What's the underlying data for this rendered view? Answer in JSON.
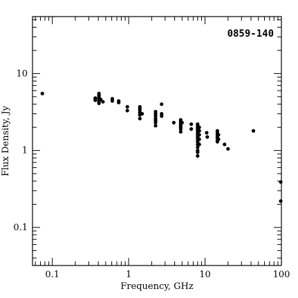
{
  "chart_data": {
    "type": "scatter",
    "title": "0859-140",
    "xlabel": "Frequency, GHz",
    "ylabel": "Flux Density, Jy",
    "xscale": "log",
    "yscale": "log",
    "xlim": [
      0.055,
      100
    ],
    "ylim": [
      0.032,
      55
    ],
    "grid": false,
    "xticks": [
      {
        "value": 0.1,
        "label": "0.1"
      },
      {
        "value": 1,
        "label": "1"
      },
      {
        "value": 10,
        "label": "10"
      },
      {
        "value": 100,
        "label": "100"
      }
    ],
    "yticks": [
      {
        "value": 0.1,
        "label": "0.1"
      },
      {
        "value": 1,
        "label": "1"
      },
      {
        "value": 10,
        "label": "10"
      }
    ],
    "points": [
      [
        0.074,
        5.5
      ],
      [
        0.365,
        4.8
      ],
      [
        0.365,
        4.5
      ],
      [
        0.365,
        4.7
      ],
      [
        0.408,
        5.5
      ],
      [
        0.408,
        5.2
      ],
      [
        0.408,
        5.0
      ],
      [
        0.408,
        4.8
      ],
      [
        0.408,
        4.5
      ],
      [
        0.408,
        4.3
      ],
      [
        0.408,
        4.1
      ],
      [
        0.43,
        4.6
      ],
      [
        0.46,
        4.3
      ],
      [
        0.61,
        4.7
      ],
      [
        0.61,
        4.4
      ],
      [
        0.74,
        4.4
      ],
      [
        0.74,
        4.2
      ],
      [
        0.96,
        3.7
      ],
      [
        0.96,
        3.3
      ],
      [
        1.4,
        3.7
      ],
      [
        1.4,
        3.5
      ],
      [
        1.4,
        3.3
      ],
      [
        1.4,
        3.1
      ],
      [
        1.4,
        2.9
      ],
      [
        1.4,
        2.6
      ],
      [
        1.5,
        3.0
      ],
      [
        2.25,
        3.2
      ],
      [
        2.25,
        3.0
      ],
      [
        2.25,
        2.8
      ],
      [
        2.25,
        2.6
      ],
      [
        2.25,
        2.45
      ],
      [
        2.25,
        2.3
      ],
      [
        2.25,
        2.1
      ],
      [
        2.7,
        4.0
      ],
      [
        2.7,
        3.0
      ],
      [
        2.7,
        2.8
      ],
      [
        3.9,
        2.3
      ],
      [
        4.8,
        2.5
      ],
      [
        4.8,
        2.4
      ],
      [
        4.8,
        2.3
      ],
      [
        4.8,
        2.2
      ],
      [
        4.8,
        2.1
      ],
      [
        4.8,
        2.0
      ],
      [
        4.8,
        1.9
      ],
      [
        4.8,
        1.75
      ],
      [
        5.0,
        2.3
      ],
      [
        6.6,
        2.2
      ],
      [
        6.6,
        1.9
      ],
      [
        8.0,
        2.2
      ],
      [
        8.0,
        2.1
      ],
      [
        8.0,
        2.0
      ],
      [
        8.0,
        1.9
      ],
      [
        8.0,
        1.8
      ],
      [
        8.0,
        1.7
      ],
      [
        8.0,
        1.6
      ],
      [
        8.0,
        1.5
      ],
      [
        8.0,
        1.4
      ],
      [
        8.0,
        1.3
      ],
      [
        8.0,
        1.2
      ],
      [
        8.0,
        1.1
      ],
      [
        8.0,
        1.0
      ],
      [
        8.0,
        0.95
      ],
      [
        8.0,
        0.85
      ],
      [
        8.4,
        2.0
      ],
      [
        8.4,
        1.8
      ],
      [
        8.4,
        1.6
      ],
      [
        8.4,
        1.4
      ],
      [
        8.4,
        1.2
      ],
      [
        10.5,
        1.7
      ],
      [
        10.7,
        1.5
      ],
      [
        14.5,
        1.8
      ],
      [
        14.5,
        1.7
      ],
      [
        14.5,
        1.6
      ],
      [
        14.5,
        1.5
      ],
      [
        14.5,
        1.45
      ],
      [
        14.5,
        1.35
      ],
      [
        14.5,
        1.3
      ],
      [
        15.0,
        1.6
      ],
      [
        15.0,
        1.4
      ],
      [
        18.0,
        1.2
      ],
      [
        20.0,
        1.05
      ],
      [
        43.0,
        1.8
      ],
      [
        98.0,
        0.39
      ],
      [
        98.0,
        0.22
      ]
    ]
  }
}
